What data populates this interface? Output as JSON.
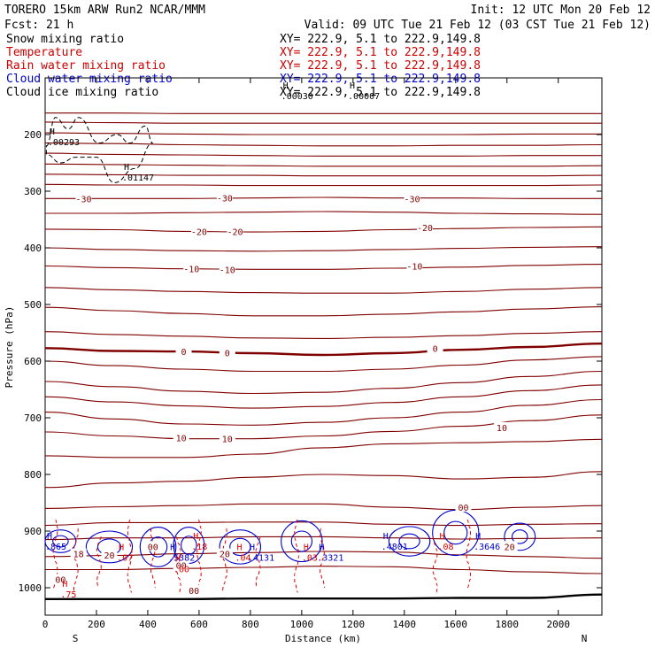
{
  "header": {
    "model": "TORERO  15km ARW   Run2     NCAR/MMM",
    "init": "Init: 12 UTC Mon 20 Feb 12",
    "fcst": "Fcst:    21 h",
    "valid": "Valid: 09 UTC Tue 21 Feb 12 (03 CST Tue 21 Feb 12)"
  },
  "fields": [
    {
      "name": "Snow mixing ratio",
      "xy": "XY= 222.9,  5.1 to 222.9,149.8",
      "color": "#000000"
    },
    {
      "name": "Temperature",
      "xy": "XY= 222.9,  5.1 to 222.9,149.8",
      "color": "#cc0000"
    },
    {
      "name": "Rain water mixing ratio",
      "xy": "XY= 222.9,  5.1 to 222.9,149.8",
      "color": "#cc0000"
    },
    {
      "name": "Cloud water mixing ratio",
      "xy": "XY= 222.9,  5.1 to 222.9,149.8",
      "color": "#0000cc"
    },
    {
      "name": "Cloud ice mixing ratio",
      "xy": "XY= 222.9,  5.1 to 222.9,149.8",
      "color": "#000000"
    }
  ],
  "colors": {
    "temp_contour": "#800000",
    "cloud_water": "#0000cc",
    "rain": "#e00000",
    "snow": "#000000",
    "terrain": "#000000"
  },
  "chart_data": {
    "type": "contour",
    "xlabel": "Distance (km)",
    "ylabel": "Pressure (hPa)",
    "xlim": [
      0,
      2170
    ],
    "ylim": [
      1050,
      150
    ],
    "x_ticks": [
      0,
      200,
      400,
      600,
      800,
      1000,
      1200,
      1400,
      1600,
      1800,
      2000
    ],
    "y_ticks": [
      200,
      300,
      400,
      500,
      600,
      700,
      800,
      900,
      1000
    ],
    "left_end_label": "S",
    "right_end_label": "N",
    "temperature_isotherms_pressure": [
      {
        "temp": -55,
        "p": [
          162,
          162,
          163,
          163,
          163,
          163,
          163,
          163,
          163
        ]
      },
      {
        "temp": -50,
        "p": [
          178,
          179,
          180,
          180,
          180,
          180,
          180,
          180,
          180
        ]
      },
      {
        "temp": -48,
        "p": [
          197,
          198,
          199,
          200,
          200,
          200,
          200,
          199,
          199
        ]
      },
      {
        "temp": -46,
        "p": [
          215,
          216,
          218,
          219,
          220,
          220,
          219,
          219,
          218
        ]
      },
      {
        "temp": -44,
        "p": [
          233,
          235,
          236,
          237,
          238,
          238,
          238,
          237,
          237
        ]
      },
      {
        "temp": -42,
        "p": [
          252,
          253,
          254,
          255,
          256,
          256,
          256,
          256,
          255
        ]
      },
      {
        "temp": -40,
        "p": [
          270,
          271,
          272,
          272,
          273,
          273,
          273,
          273,
          272
        ]
      },
      {
        "temp": -35,
        "p": [
          288,
          289,
          289,
          290,
          290,
          290,
          290,
          290,
          289
        ]
      },
      {
        "temp": -30,
        "p": [
          313,
          313,
          313,
          312,
          311,
          312,
          312,
          313,
          313
        ]
      },
      {
        "temp": -25,
        "p": [
          339,
          339,
          338,
          337,
          336,
          337,
          339,
          340,
          341
        ]
      },
      {
        "temp": -20,
        "p": [
          367,
          368,
          371,
          372,
          371,
          368,
          366,
          364,
          363
        ]
      },
      {
        "temp": -15,
        "p": [
          400,
          403,
          405,
          406,
          405,
          403,
          401,
          399,
          398
        ]
      },
      {
        "temp": -10,
        "p": [
          432,
          435,
          437,
          438,
          438,
          436,
          434,
          431,
          429
        ]
      },
      {
        "temp": -5,
        "p": [
          470,
          474,
          477,
          479,
          480,
          480,
          477,
          473,
          470
        ]
      },
      {
        "temp": -3,
        "p": [
          505,
          511,
          516,
          520,
          520,
          517,
          513,
          508,
          504
        ]
      },
      {
        "temp": -1,
        "p": [
          548,
          553,
          556,
          559,
          560,
          558,
          555,
          551,
          548
        ]
      },
      {
        "temp": 0,
        "p": [
          577,
          582,
          583,
          586,
          589,
          586,
          580,
          575,
          569
        ]
      },
      {
        "temp": 2,
        "p": [
          600,
          608,
          614,
          618,
          618,
          614,
          607,
          598,
          592
        ]
      },
      {
        "temp": 4,
        "p": [
          636,
          645,
          653,
          657,
          655,
          648,
          638,
          627,
          618
        ]
      },
      {
        "temp": 6,
        "p": [
          663,
          672,
          679,
          683,
          680,
          673,
          663,
          652,
          642
        ]
      },
      {
        "temp": 8,
        "p": [
          690,
          702,
          711,
          713,
          708,
          700,
          690,
          678,
          668
        ]
      },
      {
        "temp": 10,
        "p": [
          725,
          732,
          737,
          737,
          732,
          724,
          715,
          705,
          695
        ]
      },
      {
        "temp": 12,
        "p": [
          767,
          770,
          770,
          764,
          753,
          746,
          744,
          742,
          738
        ]
      },
      {
        "temp": 14,
        "p": [
          823,
          815,
          812,
          805,
          800,
          802,
          808,
          805,
          795
        ]
      },
      {
        "temp": 16,
        "p": [
          860,
          857,
          855,
          852,
          852,
          858,
          862,
          858,
          855
        ]
      },
      {
        "temp": 18,
        "p": [
          890,
          885,
          885,
          884,
          884,
          888,
          890,
          888,
          887
        ]
      },
      {
        "temp": 20,
        "p": [
          915,
          912,
          912,
          910,
          910,
          912,
          914,
          913,
          912
        ]
      },
      {
        "temp": 22,
        "p": [
          945,
          943,
          940,
          938,
          936,
          937,
          942,
          945,
          948
        ]
      },
      {
        "temp": 24,
        "p": [
          968,
          968,
          966,
          964,
          962,
          963,
          968,
          972,
          975
        ]
      }
    ],
    "isotherm_x": [
      0,
      270,
      540,
      810,
      1080,
      1350,
      1620,
      1890,
      2170
    ],
    "temperature_labels": [
      {
        "text": "-30",
        "x": 150,
        "p": 313
      },
      {
        "text": "-30",
        "x": 700,
        "p": 312
      },
      {
        "text": "-30",
        "x": 1430,
        "p": 313
      },
      {
        "text": "-20",
        "x": 600,
        "p": 371
      },
      {
        "text": "-20",
        "x": 740,
        "p": 371
      },
      {
        "text": "-20",
        "x": 1480,
        "p": 364
      },
      {
        "text": "-10",
        "x": 570,
        "p": 437
      },
      {
        "text": "-10",
        "x": 710,
        "p": 438
      },
      {
        "text": "-10",
        "x": 1440,
        "p": 432
      },
      {
        "text": "0",
        "x": 540,
        "p": 583
      },
      {
        "text": "0",
        "x": 710,
        "p": 585
      },
      {
        "text": "0",
        "x": 1520,
        "p": 577
      },
      {
        "text": "10",
        "x": 530,
        "p": 735
      },
      {
        "text": "10",
        "x": 710,
        "p": 737
      },
      {
        "text": "10",
        "x": 1780,
        "p": 717
      },
      {
        "text": "18",
        "x": 130,
        "p": 940
      },
      {
        "text": "20",
        "x": 250,
        "p": 942
      },
      {
        "text": "20",
        "x": 700,
        "p": 940
      },
      {
        "text": "20",
        "x": 1810,
        "p": 927
      },
      {
        "text": "00",
        "x": 60,
        "p": 985
      },
      {
        "text": "00",
        "x": 420,
        "p": 927
      },
      {
        "text": "00",
        "x": 530,
        "p": 960
      },
      {
        "text": "00",
        "x": 580,
        "p": 1005
      },
      {
        "text": "00",
        "x": 1630,
        "p": 858
      }
    ],
    "max_labels": [
      {
        "text": ".00030",
        "x": 920,
        "p": 125
      },
      {
        "text": ".00007",
        "x": 1180,
        "p": 125
      },
      {
        "text": ".00293",
        "x": 10,
        "p": 206
      },
      {
        "text": ".01147",
        "x": 300,
        "p": 269
      },
      {
        "text": ".865",
        "x": 0,
        "p": 920
      },
      {
        "text": ".5382",
        "x": 480,
        "p": 940
      },
      {
        "text": ".4131",
        "x": 790,
        "p": 940
      },
      {
        "text": ".3321",
        "x": 1060,
        "p": 940
      },
      {
        "text": ".4801",
        "x": 1310,
        "p": 920
      },
      {
        "text": ".3646",
        "x": 1670,
        "p": 920
      },
      {
        "text": ".07",
        "x": 280,
        "p": 940
      },
      {
        "text": ".18",
        "x": 570,
        "p": 920
      },
      {
        "text": ".04",
        "x": 740,
        "p": 940
      },
      {
        "text": ".03",
        "x": 1000,
        "p": 940
      },
      {
        "text": ".08",
        "x": 1530,
        "p": 920
      },
      {
        "text": ".75",
        "x": 60,
        "p": 1005
      },
      {
        "text": ".00",
        "x": 500,
        "p": 960
      }
    ]
  }
}
